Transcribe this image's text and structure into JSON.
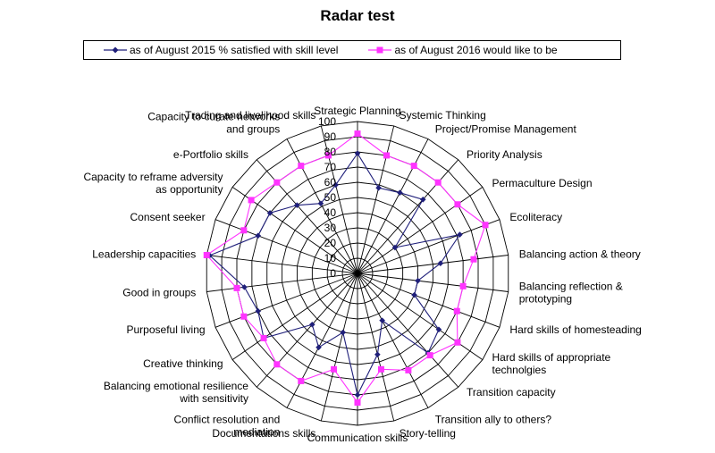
{
  "chart_data": {
    "type": "radar",
    "title": "Radar test",
    "r_min": 0,
    "r_max": 100,
    "r_step": 10,
    "ticks": [
      "0",
      "10",
      "20",
      "30",
      "40",
      "50",
      "60",
      "70",
      "80",
      "90",
      "100"
    ],
    "categories": [
      "Strategic Planning",
      "Systemic Thinking",
      "Project/Promise Management",
      "Priority Analysis",
      "Permaculture Design",
      "Ecoliteracy",
      "Balancing action & theory",
      "Balancing reflection & prototyping",
      "Hard skills of homesteading",
      "Hard skills of appropriate technolgies",
      "Transition capacity",
      "Transition ally to others?",
      "Story-telling",
      "Communication skills",
      "Documentations skills",
      "Conflict resolution and mediation",
      "Balancing emotional resilience with sensitivity",
      "Creative thinking",
      "Purposeful living",
      "Good in groups",
      "Leadership capacities",
      "Consent seeker",
      "Capacity to reframe adversity as opportunity",
      "e-Portfolio skills",
      "Capacity to curate networks and groups",
      "Trading  and livelihood skills"
    ],
    "series": [
      {
        "name": "as of August 2015 % satisfied with skill level",
        "color": "#1f1f7a",
        "marker": "diamond",
        "values": [
          79,
          58,
          60,
          65,
          30,
          72,
          55,
          40,
          40,
          65,
          70,
          35,
          55,
          80,
          40,
          55,
          45,
          75,
          70,
          75,
          98,
          70,
          70,
          60,
          52,
          60
        ]
      },
      {
        "name": "as of August 2016  would like to be",
        "color": "#ff33ff",
        "marker": "square",
        "values": [
          92,
          80,
          80,
          80,
          80,
          90,
          77,
          70,
          70,
          80,
          72,
          72,
          65,
          85,
          65,
          80,
          80,
          75,
          80,
          80,
          100,
          80,
          85,
          80,
          80,
          80
        ]
      }
    ]
  }
}
